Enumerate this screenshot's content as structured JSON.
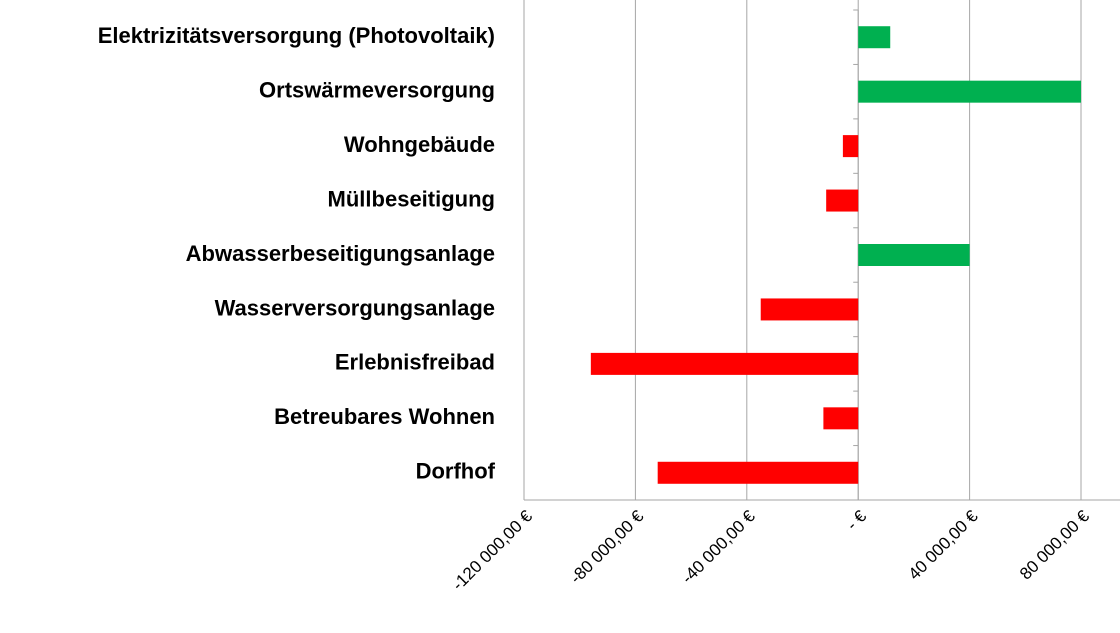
{
  "chart_data": {
    "type": "hbar",
    "categories": [
      "Elektrizitätsversorgung (Photovoltaik)",
      "Ortswärmeversorgung",
      "Wohngebäude",
      "Müllbeseitigung",
      "Abwasserbeseitigungsanlage",
      "Wasserversorgungsanlage",
      "Erlebnisfreibad",
      "Betreubares Wohnen",
      "Dorfhof"
    ],
    "values": [
      11500,
      80000,
      -5500,
      -11500,
      40000,
      -35000,
      -96000,
      -12500,
      -72000
    ],
    "colors": [
      "#00b050",
      "#00b050",
      "#ff0000",
      "#ff0000",
      "#00b050",
      "#ff0000",
      "#ff0000",
      "#ff0000",
      "#ff0000"
    ],
    "xlim": [
      -120000,
      94000
    ],
    "xticks": [
      {
        "value": -120000,
        "label": "-120 000,00 €"
      },
      {
        "value": -80000,
        "label": "-80 000,00 €"
      },
      {
        "value": -40000,
        "label": "-40 000,00 €"
      },
      {
        "value": 0,
        "label": "-  €"
      },
      {
        "value": 40000,
        "label": "40 000,00 €"
      },
      {
        "value": 80000,
        "label": "80 000,00 €"
      }
    ],
    "grid": true
  }
}
